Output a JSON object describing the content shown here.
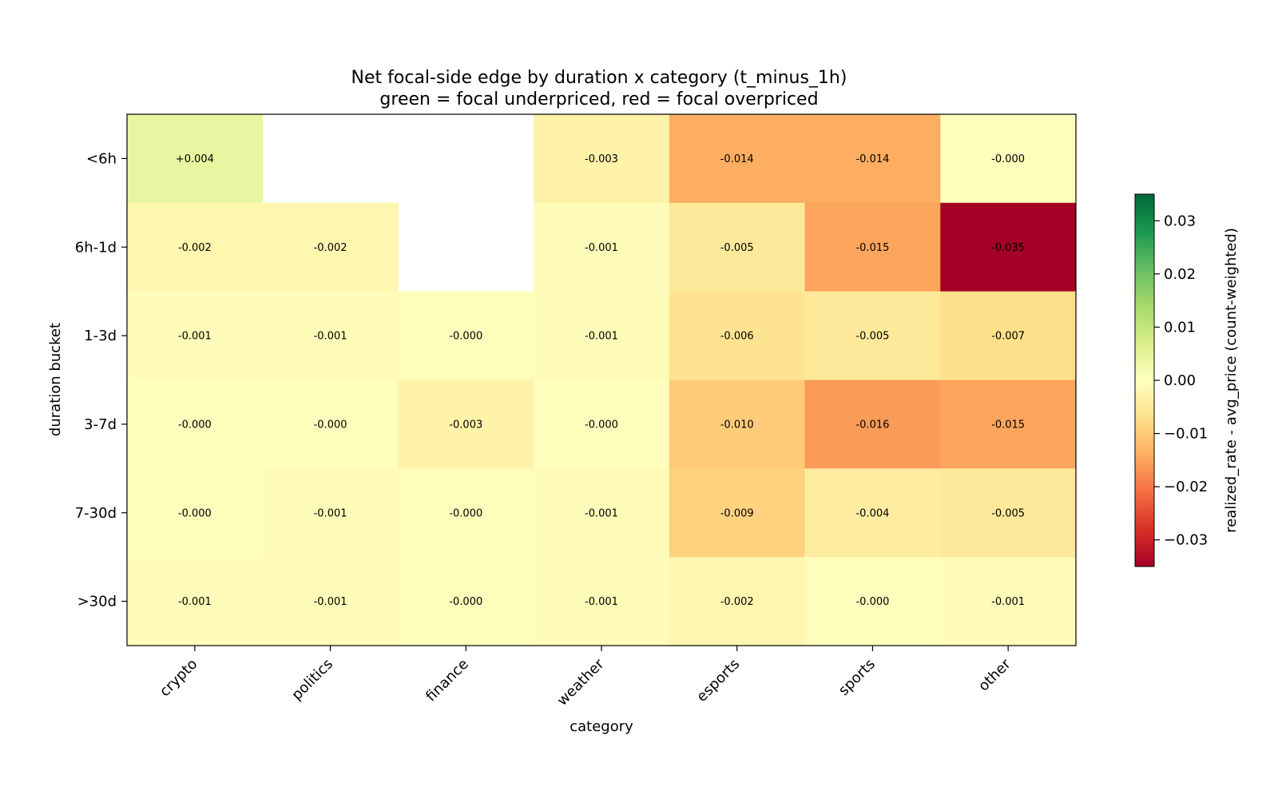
{
  "chart_data": {
    "type": "heatmap",
    "title": "Net focal-side edge by duration x category (t_minus_1h)",
    "subtitle": "green = focal underpriced, red = focal overpriced",
    "xlabel": "category",
    "ylabel": "duration bucket",
    "colorbar_label": "realized_rate - avg_price (count-weighted)",
    "colormap": "RdYlGn",
    "vlim": [
      -0.035,
      0.035
    ],
    "colorbar_ticks": [
      {
        "value": 0.03,
        "label": "0.03"
      },
      {
        "value": 0.02,
        "label": "0.02"
      },
      {
        "value": 0.01,
        "label": "0.01"
      },
      {
        "value": 0.0,
        "label": "0.00"
      },
      {
        "value": -0.01,
        "label": "−0.01"
      },
      {
        "value": -0.02,
        "label": "−0.02"
      },
      {
        "value": -0.03,
        "label": "−0.03"
      }
    ],
    "x_categories": [
      "crypto",
      "politics",
      "finance",
      "weather",
      "esports",
      "sports",
      "other"
    ],
    "y_categories": [
      "<6h",
      "6h-1d",
      "1-3d",
      "3-7d",
      "7-30d",
      ">30d"
    ],
    "values": [
      [
        0.004,
        null,
        null,
        -0.003,
        -0.014,
        -0.014,
        -0.0004
      ],
      [
        -0.002,
        -0.002,
        null,
        -0.001,
        -0.005,
        -0.015,
        -0.035
      ],
      [
        -0.001,
        -0.001,
        -0.0004,
        -0.001,
        -0.006,
        -0.005,
        -0.007
      ],
      [
        -0.0004,
        -0.0004,
        -0.003,
        -0.0004,
        -0.01,
        -0.016,
        -0.015
      ],
      [
        -0.0004,
        -0.001,
        -0.0004,
        -0.001,
        -0.009,
        -0.004,
        -0.005
      ],
      [
        -0.001,
        -0.001,
        -0.0004,
        -0.001,
        -0.002,
        -0.0004,
        -0.001
      ]
    ],
    "labels": [
      [
        "+0.004",
        null,
        null,
        "-0.003",
        "-0.014",
        "-0.014",
        "-0.000"
      ],
      [
        "-0.002",
        "-0.002",
        null,
        "-0.001",
        "-0.005",
        "-0.015",
        "-0.035"
      ],
      [
        "-0.001",
        "-0.001",
        "-0.000",
        "-0.001",
        "-0.006",
        "-0.005",
        "-0.007"
      ],
      [
        "-0.000",
        "-0.000",
        "-0.003",
        "-0.000",
        "-0.010",
        "-0.016",
        "-0.015"
      ],
      [
        "-0.000",
        "-0.001",
        "-0.000",
        "-0.001",
        "-0.009",
        "-0.004",
        "-0.005"
      ],
      [
        "-0.001",
        "-0.001",
        "-0.000",
        "-0.001",
        "-0.002",
        "-0.000",
        "-0.001"
      ]
    ]
  }
}
